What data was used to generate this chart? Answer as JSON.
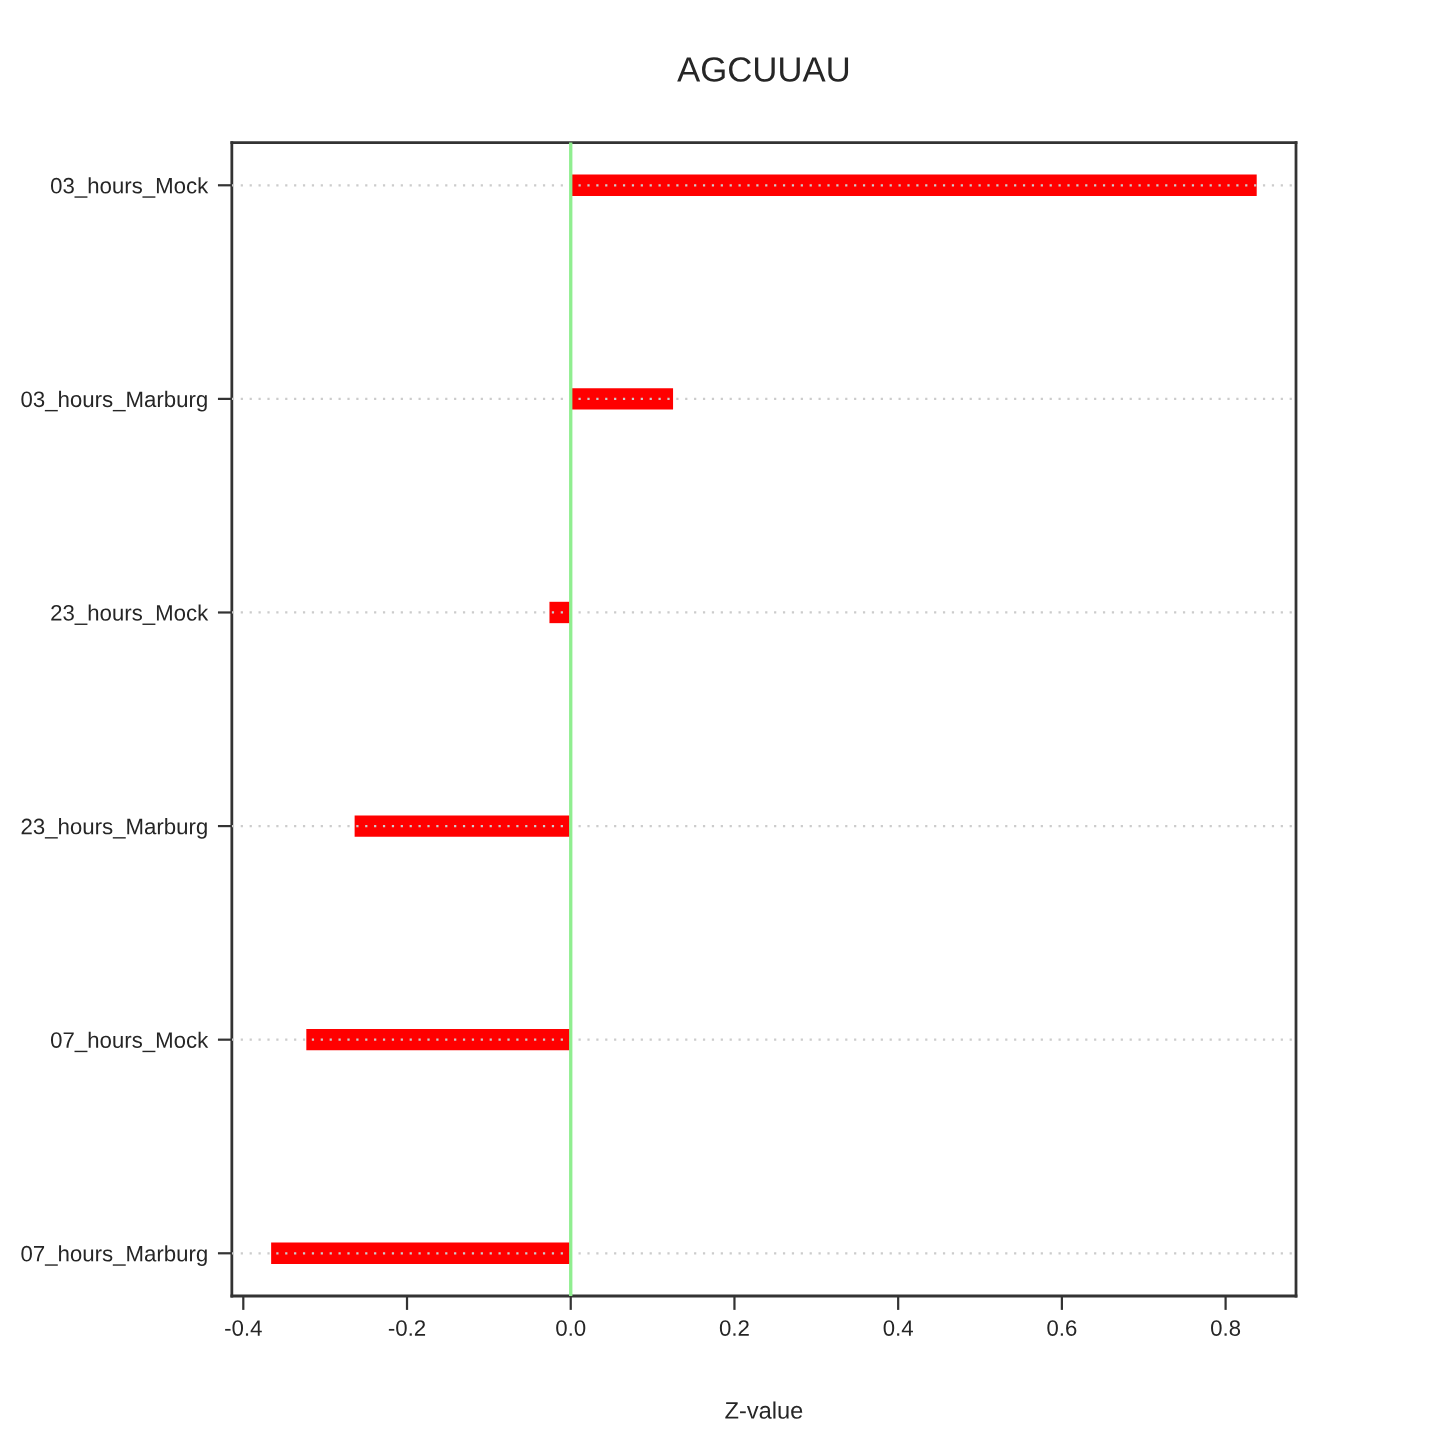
{
  "chart_data": {
    "type": "bar",
    "orientation": "horizontal",
    "title": "AGCUUAU",
    "xlabel": "Z-value",
    "categories": [
      "03_hours_Mock",
      "03_hours_Marburg",
      "23_hours_Mock",
      "23_hours_Marburg",
      "07_hours_Mock",
      "07_hours_Marburg"
    ],
    "values": [
      0.838,
      0.125,
      -0.026,
      -0.264,
      -0.323,
      -0.366
    ],
    "color": "#ff0000",
    "xlim": [
      -0.414,
      0.886
    ],
    "xticks": [
      -0.4,
      -0.2,
      {
        "value": 0,
        "label": "0.0"
      },
      0.2,
      0.4,
      0.6,
      0.8
    ],
    "grid": "y",
    "ref_lines": [
      {
        "axis": "x",
        "value": 0,
        "color": "#90ee90"
      }
    ]
  }
}
